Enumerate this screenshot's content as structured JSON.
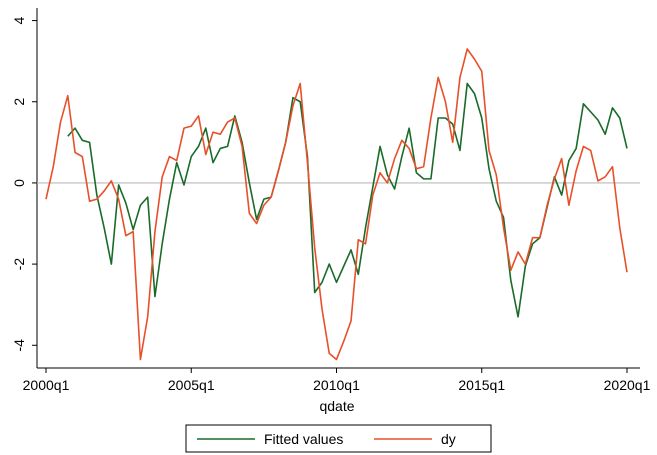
{
  "chart_data": {
    "type": "line",
    "x_label": "qdate",
    "x": [
      "2000q1",
      "2000q2",
      "2000q3",
      "2000q4",
      "2001q1",
      "2001q2",
      "2001q3",
      "2001q4",
      "2002q1",
      "2002q2",
      "2002q3",
      "2002q4",
      "2003q1",
      "2003q2",
      "2003q3",
      "2003q4",
      "2004q1",
      "2004q2",
      "2004q3",
      "2004q4",
      "2005q1",
      "2005q2",
      "2005q3",
      "2005q4",
      "2006q1",
      "2006q2",
      "2006q3",
      "2006q4",
      "2007q1",
      "2007q2",
      "2007q3",
      "2007q4",
      "2008q1",
      "2008q2",
      "2008q3",
      "2008q4",
      "2009q1",
      "2009q2",
      "2009q3",
      "2009q4",
      "2010q1",
      "2010q2",
      "2010q3",
      "2010q4",
      "2011q1",
      "2011q2",
      "2011q3",
      "2011q4",
      "2012q1",
      "2012q2",
      "2012q3",
      "2012q4",
      "2013q1",
      "2013q2",
      "2013q3",
      "2013q4",
      "2014q1",
      "2014q2",
      "2014q3",
      "2014q4",
      "2015q1",
      "2015q2",
      "2015q3",
      "2015q4",
      "2016q1",
      "2016q2",
      "2016q3",
      "2016q4",
      "2017q1",
      "2017q2",
      "2017q3",
      "2017q4",
      "2018q1",
      "2018q2",
      "2018q3",
      "2018q4",
      "2019q1",
      "2019q2",
      "2019q3",
      "2019q4",
      "2020q1"
    ],
    "xticks": [
      "2000q1",
      "2005q1",
      "2010q1",
      "2015q1",
      "2020q1"
    ],
    "ylim": [
      -4.56,
      4.31
    ],
    "yticks": [
      -4,
      -2,
      0,
      2,
      4
    ],
    "reference_line": 0,
    "series": [
      {
        "name": "Fitted values",
        "color": "#1a6b2a",
        "values": [
          null,
          null,
          null,
          1.15,
          1.35,
          1.05,
          1.0,
          -0.3,
          -1.1,
          -2.0,
          -0.05,
          -0.5,
          -1.15,
          -0.55,
          -0.35,
          -2.8,
          -1.5,
          -0.4,
          0.5,
          -0.05,
          0.65,
          0.9,
          1.35,
          0.5,
          0.85,
          0.9,
          1.65,
          1.0,
          0.0,
          -0.9,
          -0.4,
          -0.35,
          0.3,
          1.0,
          2.1,
          2.0,
          0.65,
          -2.7,
          -2.45,
          -2.0,
          -2.45,
          -2.05,
          -1.65,
          -2.25,
          -1.1,
          -0.1,
          0.9,
          0.2,
          -0.15,
          0.65,
          1.35,
          0.25,
          0.1,
          0.1,
          1.6,
          1.6,
          1.45,
          0.8,
          2.45,
          2.2,
          1.6,
          0.35,
          -0.45,
          -0.85,
          -2.4,
          -3.3,
          -2.05,
          -1.5,
          -1.35,
          -0.6,
          0.15,
          -0.3,
          0.55,
          0.85,
          1.95,
          1.75,
          1.55,
          1.2,
          1.85,
          1.6,
          0.85
        ]
      },
      {
        "name": "dy",
        "color": "#e8502a",
        "values": [
          -0.4,
          0.4,
          1.5,
          2.15,
          0.75,
          0.65,
          -0.45,
          -0.4,
          -0.2,
          0.05,
          -0.4,
          -1.3,
          -1.2,
          -4.35,
          -3.3,
          -1.2,
          0.15,
          0.65,
          0.55,
          1.35,
          1.4,
          1.65,
          0.7,
          1.25,
          1.2,
          1.5,
          1.6,
          0.9,
          -0.75,
          -1.0,
          -0.55,
          -0.35,
          0.3,
          1.0,
          1.9,
          2.45,
          0.5,
          -1.6,
          -3.1,
          -4.2,
          -4.35,
          -3.9,
          -3.4,
          -1.4,
          -1.5,
          -0.3,
          0.25,
          0.0,
          0.6,
          1.05,
          0.85,
          0.35,
          0.4,
          1.6,
          2.6,
          2.0,
          1.0,
          2.6,
          3.3,
          3.05,
          2.75,
          0.8,
          0.2,
          -1.1,
          -2.15,
          -1.7,
          -2.0,
          -1.35,
          -1.35,
          -0.55,
          0.1,
          0.6,
          -0.55,
          0.3,
          0.9,
          0.8,
          0.05,
          0.15,
          0.4,
          -1.1,
          -2.2
        ]
      }
    ]
  }
}
